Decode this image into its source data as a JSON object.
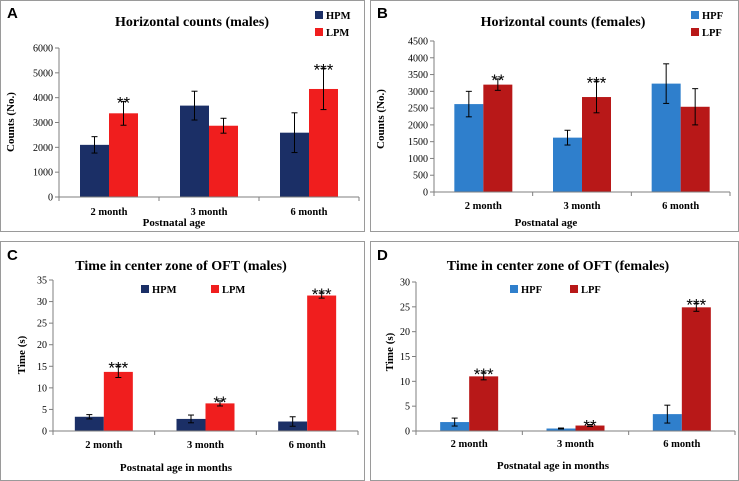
{
  "colors": {
    "hpm": "#1b2f66",
    "lpm": "#f01e1e",
    "hpf": "#2f7fcc",
    "lpf": "#b81818",
    "axis": "#7f7f7f",
    "error": "#000000"
  },
  "chart_data": [
    {
      "panel": "A",
      "type": "bar",
      "title": "Horizontal counts (males)",
      "xlabel": "Postnatal age",
      "ylabel": "Counts (No.)",
      "categories": [
        "2 month",
        "3 month",
        "6 month"
      ],
      "ylim": [
        0,
        6000
      ],
      "yticks": [
        0,
        1000,
        2000,
        3000,
        4000,
        5000,
        6000
      ],
      "ytick_labels": [
        "0",
        "1000",
        "2000",
        "3000",
        "4000",
        "5000",
        "6000"
      ],
      "legend_position": "top-right",
      "legend_layout": "vertical",
      "series": [
        {
          "name": "HPM",
          "color_key": "hpm",
          "values": [
            2100,
            3680,
            2590
          ],
          "errors": [
            330,
            580,
            800
          ]
        },
        {
          "name": "LPM",
          "color_key": "lpm",
          "values": [
            3370,
            2870,
            4350
          ],
          "errors": [
            480,
            300,
            830
          ]
        }
      ],
      "annotations": [
        {
          "category_index": 0,
          "series_index": 1,
          "text": "**"
        },
        {
          "category_index": 2,
          "series_index": 1,
          "text": "***"
        }
      ]
    },
    {
      "panel": "B",
      "type": "bar",
      "title": "Horizontal counts (females)",
      "xlabel": "Postnatal age",
      "ylabel": "Counts (No.)",
      "categories": [
        "2 month",
        "3 month",
        "6 month"
      ],
      "ylim": [
        0,
        4500
      ],
      "yticks": [
        0,
        500,
        1000,
        1500,
        2000,
        2500,
        3000,
        3500,
        4000,
        4500
      ],
      "ytick_labels": [
        "0",
        "500",
        "1000",
        "1500",
        "2000",
        "2500",
        "3000",
        "3500",
        "4000",
        "4500"
      ],
      "legend_position": "top-right",
      "legend_layout": "vertical",
      "series": [
        {
          "name": "HPF",
          "color_key": "hpf",
          "values": [
            2620,
            1620,
            3230
          ],
          "errors": [
            380,
            220,
            590
          ]
        },
        {
          "name": "LPF",
          "color_key": "lpf",
          "values": [
            3200,
            2830,
            2540
          ],
          "errors": [
            170,
            470,
            540
          ]
        }
      ],
      "annotations": [
        {
          "category_index": 0,
          "series_index": 1,
          "text": "**"
        },
        {
          "category_index": 1,
          "series_index": 1,
          "text": "***"
        }
      ]
    },
    {
      "panel": "C",
      "type": "bar",
      "title": "Time in center zone of OFT (males)",
      "xlabel": "Postnatal age in months",
      "ylabel": "Time (s)",
      "categories": [
        "2 month",
        "3 month",
        "6 month"
      ],
      "ylim": [
        0,
        35
      ],
      "yticks": [
        0,
        5,
        10,
        15,
        20,
        25,
        30,
        35
      ],
      "ytick_labels": [
        "0",
        "5",
        "10",
        "15",
        "20",
        "25",
        "30",
        "35"
      ],
      "legend_position": "top-left",
      "legend_layout": "horizontal",
      "series": [
        {
          "name": "HPM",
          "color_key": "hpm",
          "values": [
            3.3,
            2.8,
            2.2
          ],
          "errors": [
            0.5,
            0.9,
            1.1
          ]
        },
        {
          "name": "LPM",
          "color_key": "lpm",
          "values": [
            13.7,
            6.4,
            31.4
          ],
          "errors": [
            1.3,
            0.6,
            0.6
          ]
        }
      ],
      "annotations": [
        {
          "category_index": 0,
          "series_index": 1,
          "text": "***"
        },
        {
          "category_index": 1,
          "series_index": 1,
          "text": "**"
        },
        {
          "category_index": 2,
          "series_index": 1,
          "text": "***"
        }
      ]
    },
    {
      "panel": "D",
      "type": "bar",
      "title": "Time in center zone of OFT (females)",
      "xlabel": "Postnatal age in months",
      "ylabel": "Time (s)",
      "categories": [
        "2 month",
        "3 month",
        "6 month"
      ],
      "ylim": [
        0,
        30
      ],
      "yticks": [
        0,
        5,
        10,
        15,
        20,
        25,
        30
      ],
      "ytick_labels": [
        "0",
        "5",
        "10",
        "15",
        "20",
        "25",
        "30"
      ],
      "legend_position": "top-left",
      "legend_layout": "horizontal",
      "series": [
        {
          "name": "HPF",
          "color_key": "hpf",
          "values": [
            1.8,
            0.5,
            3.4
          ],
          "errors": [
            0.8,
            0.1,
            1.8
          ]
        },
        {
          "name": "LPF",
          "color_key": "lpf",
          "values": [
            11.0,
            1.1,
            24.9
          ],
          "errors": [
            0.7,
            0.2,
            0.8
          ]
        }
      ],
      "annotations": [
        {
          "category_index": 0,
          "series_index": 1,
          "text": "***"
        },
        {
          "category_index": 1,
          "series_index": 1,
          "text": "**"
        },
        {
          "category_index": 2,
          "series_index": 1,
          "text": "***"
        }
      ]
    }
  ]
}
